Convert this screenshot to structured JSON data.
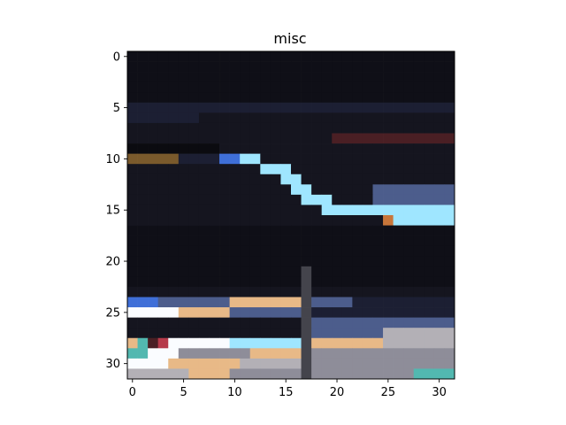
{
  "chart_data": {
    "type": "heatmap",
    "title": "misc",
    "xlabel": "",
    "ylabel": "",
    "grid": false,
    "legend": "none",
    "pixel_grid": {
      "rows": 32,
      "cols": 32
    },
    "xlim": [
      -0.5,
      31.5
    ],
    "ylim": [
      31.5,
      -0.5
    ],
    "x_ticks": [
      0,
      5,
      10,
      15,
      20,
      25,
      30
    ],
    "x_tick_labels": [
      "0",
      "5",
      "10",
      "15",
      "20",
      "25",
      "30"
    ],
    "y_ticks": [
      0,
      5,
      10,
      15,
      20,
      25,
      30
    ],
    "y_tick_labels": [
      "0",
      "5",
      "10",
      "15",
      "20",
      "25",
      "30"
    ],
    "colors": {
      "background": "#15151f",
      "dark": "#0f0f17",
      "navy": "#1c1f33",
      "shadow": "#0b0b10",
      "bronze": "#7a5a2c",
      "maroon": "#4a1f24",
      "cyan": "#9fe6ff",
      "blue": "#3f6fd8",
      "steel": "#4c5d8c",
      "white": "#fafcff",
      "peach": "#e8b987",
      "gray": "#8e8d99",
      "light_gray": "#b3b0b6",
      "teal": "#52b8b0",
      "red": "#b63a4a",
      "orange": "#c8763a",
      "pole": "#44444c"
    },
    "regions": [
      {
        "rows": [
          0,
          31
        ],
        "cols": [
          0,
          31
        ],
        "color": "background"
      },
      {
        "rows": [
          0,
          4
        ],
        "cols": [
          0,
          31
        ],
        "color": "dark"
      },
      {
        "rows": [
          5,
          5
        ],
        "cols": [
          0,
          31
        ],
        "color": "navy"
      },
      {
        "rows": [
          6,
          6
        ],
        "cols": [
          0,
          6
        ],
        "color": "navy"
      },
      {
        "rows": [
          8,
          8
        ],
        "cols": [
          20,
          31
        ],
        "color": "maroon"
      },
      {
        "rows": [
          9,
          9
        ],
        "cols": [
          0,
          8
        ],
        "color": "shadow"
      },
      {
        "rows": [
          10,
          10
        ],
        "cols": [
          0,
          4
        ],
        "color": "bronze"
      },
      {
        "rows": [
          10,
          10
        ],
        "cols": [
          5,
          8
        ],
        "color": "navy"
      },
      {
        "rows": [
          10,
          10
        ],
        "cols": [
          9,
          10
        ],
        "color": "blue"
      },
      {
        "rows": [
          10,
          10
        ],
        "cols": [
          11,
          12
        ],
        "color": "cyan"
      },
      {
        "rows": [
          11,
          11
        ],
        "cols": [
          13,
          15
        ],
        "color": "cyan"
      },
      {
        "rows": [
          12,
          12
        ],
        "cols": [
          15,
          16
        ],
        "color": "cyan"
      },
      {
        "rows": [
          13,
          13
        ],
        "cols": [
          16,
          17
        ],
        "color": "cyan"
      },
      {
        "rows": [
          13,
          14
        ],
        "cols": [
          24,
          31
        ],
        "color": "steel"
      },
      {
        "rows": [
          14,
          14
        ],
        "cols": [
          17,
          19
        ],
        "color": "cyan"
      },
      {
        "rows": [
          15,
          15
        ],
        "cols": [
          19,
          23
        ],
        "color": "cyan"
      },
      {
        "rows": [
          15,
          15
        ],
        "cols": [
          24,
          31
        ],
        "color": "cyan"
      },
      {
        "rows": [
          16,
          16
        ],
        "cols": [
          26,
          31
        ],
        "color": "cyan"
      },
      {
        "rows": [
          16,
          16
        ],
        "cols": [
          25,
          25
        ],
        "color": "orange"
      },
      {
        "rows": [
          17,
          17
        ],
        "cols": [
          28,
          28
        ],
        "color": "orange"
      },
      {
        "rows": [
          17,
          22
        ],
        "cols": [
          0,
          31
        ],
        "color": "dark"
      },
      {
        "rows": [
          21,
          31
        ],
        "cols": [
          17,
          17
        ],
        "color": "pole"
      },
      {
        "rows": [
          24,
          24
        ],
        "cols": [
          0,
          2
        ],
        "color": "blue"
      },
      {
        "rows": [
          24,
          24
        ],
        "cols": [
          3,
          9
        ],
        "color": "steel"
      },
      {
        "rows": [
          24,
          24
        ],
        "cols": [
          10,
          16
        ],
        "color": "peach"
      },
      {
        "rows": [
          24,
          24
        ],
        "cols": [
          18,
          21
        ],
        "color": "steel"
      },
      {
        "rows": [
          24,
          24
        ],
        "cols": [
          22,
          31
        ],
        "color": "navy"
      },
      {
        "rows": [
          25,
          25
        ],
        "cols": [
          0,
          4
        ],
        "color": "white"
      },
      {
        "rows": [
          25,
          25
        ],
        "cols": [
          5,
          9
        ],
        "color": "peach"
      },
      {
        "rows": [
          25,
          25
        ],
        "cols": [
          10,
          16
        ],
        "color": "steel"
      },
      {
        "rows": [
          25,
          25
        ],
        "cols": [
          18,
          31
        ],
        "color": "navy"
      },
      {
        "rows": [
          26,
          26
        ],
        "cols": [
          18,
          31
        ],
        "color": "steel"
      },
      {
        "rows": [
          27,
          27
        ],
        "cols": [
          18,
          24
        ],
        "color": "steel"
      },
      {
        "rows": [
          27,
          27
        ],
        "cols": [
          25,
          31
        ],
        "color": "light_gray"
      },
      {
        "rows": [
          28,
          28
        ],
        "cols": [
          0,
          0
        ],
        "color": "peach"
      },
      {
        "rows": [
          28,
          28
        ],
        "cols": [
          1,
          1
        ],
        "color": "teal"
      },
      {
        "rows": [
          28,
          28
        ],
        "cols": [
          2,
          2
        ],
        "color": "maroon"
      },
      {
        "rows": [
          28,
          28
        ],
        "cols": [
          3,
          3
        ],
        "color": "red"
      },
      {
        "rows": [
          28,
          28
        ],
        "cols": [
          4,
          9
        ],
        "color": "white"
      },
      {
        "rows": [
          28,
          28
        ],
        "cols": [
          10,
          16
        ],
        "color": "cyan"
      },
      {
        "rows": [
          28,
          28
        ],
        "cols": [
          18,
          24
        ],
        "color": "peach"
      },
      {
        "rows": [
          28,
          28
        ],
        "cols": [
          25,
          31
        ],
        "color": "light_gray"
      },
      {
        "rows": [
          29,
          29
        ],
        "cols": [
          0,
          1
        ],
        "color": "teal"
      },
      {
        "rows": [
          29,
          29
        ],
        "cols": [
          2,
          4
        ],
        "color": "white"
      },
      {
        "rows": [
          29,
          29
        ],
        "cols": [
          5,
          11
        ],
        "color": "gray"
      },
      {
        "rows": [
          29,
          29
        ],
        "cols": [
          12,
          16
        ],
        "color": "peach"
      },
      {
        "rows": [
          29,
          31
        ],
        "cols": [
          18,
          31
        ],
        "color": "gray"
      },
      {
        "rows": [
          30,
          30
        ],
        "cols": [
          0,
          3
        ],
        "color": "white"
      },
      {
        "rows": [
          30,
          30
        ],
        "cols": [
          4,
          10
        ],
        "color": "peach"
      },
      {
        "rows": [
          30,
          30
        ],
        "cols": [
          11,
          16
        ],
        "color": "light_gray"
      },
      {
        "rows": [
          31,
          31
        ],
        "cols": [
          0,
          5
        ],
        "color": "light_gray"
      },
      {
        "rows": [
          31,
          31
        ],
        "cols": [
          6,
          9
        ],
        "color": "peach"
      },
      {
        "rows": [
          31,
          31
        ],
        "cols": [
          10,
          16
        ],
        "color": "gray"
      },
      {
        "rows": [
          31,
          31
        ],
        "cols": [
          28,
          31
        ],
        "color": "teal"
      }
    ]
  }
}
